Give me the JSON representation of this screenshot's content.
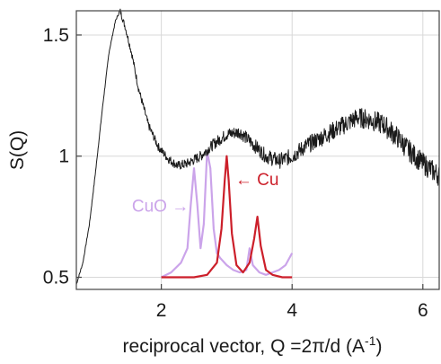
{
  "chart_data": {
    "type": "line",
    "title": "",
    "xlabel": "reciprocal vector, Q =2π/d (A",
    "xlabel_sup": "-1",
    "xlabel_suffix": ")",
    "ylabel": "S(Q)",
    "xlim": [
      0.7,
      6.25
    ],
    "ylim": [
      0.45,
      1.6
    ],
    "xticks": [
      2,
      4,
      6
    ],
    "xtick_labels": [
      "2",
      "4",
      "6"
    ],
    "yticks": [
      0.5,
      1,
      1.5
    ],
    "ytick_labels": [
      "0.5",
      "1",
      "1.5"
    ],
    "grid": true,
    "legend": "none",
    "series": [
      {
        "color": "#1a1a1a",
        "noisy": true,
        "x": [
          0.7,
          0.8,
          0.9,
          1.0,
          1.1,
          1.2,
          1.3,
          1.37,
          1.45,
          1.55,
          1.65,
          1.8,
          1.95,
          2.1,
          2.25,
          2.4,
          2.6,
          2.8,
          3.0,
          3.2,
          3.4,
          3.6,
          3.8,
          4.0,
          4.2,
          4.4,
          4.6,
          4.8,
          5.0,
          5.2,
          5.4,
          5.6,
          5.8,
          6.0,
          6.2,
          6.25
        ],
        "y": [
          0.47,
          0.56,
          0.72,
          0.95,
          1.2,
          1.43,
          1.56,
          1.6,
          1.53,
          1.42,
          1.28,
          1.13,
          1.04,
          0.99,
          0.96,
          0.97,
          1.0,
          1.05,
          1.09,
          1.1,
          1.05,
          1.0,
          0.98,
          1.0,
          1.04,
          1.07,
          1.1,
          1.13,
          1.16,
          1.15,
          1.13,
          1.08,
          1.02,
          0.97,
          0.93,
          0.92
        ]
      },
      {
        "name": "CuO",
        "color": "#cba4ea",
        "x": [
          2.0,
          2.15,
          2.3,
          2.4,
          2.45,
          2.5,
          2.55,
          2.6,
          2.65,
          2.7,
          2.75,
          2.8,
          2.85,
          2.9,
          3.0,
          3.1,
          3.2,
          3.3,
          3.35,
          3.4,
          3.5,
          3.6,
          3.7,
          3.8,
          3.9,
          4.0
        ],
        "y": [
          0.5,
          0.52,
          0.56,
          0.62,
          0.8,
          0.95,
          0.8,
          0.62,
          0.72,
          1.02,
          0.95,
          0.7,
          0.6,
          0.58,
          0.55,
          0.53,
          0.52,
          0.53,
          0.62,
          0.55,
          0.52,
          0.51,
          0.52,
          0.53,
          0.55,
          0.6
        ]
      },
      {
        "name": "Cu",
        "color": "#cc1f2a",
        "x": [
          2.0,
          2.5,
          2.7,
          2.85,
          2.92,
          2.97,
          3.0,
          3.03,
          3.08,
          3.15,
          3.25,
          3.35,
          3.42,
          3.47,
          3.52,
          3.6,
          3.7,
          3.85,
          4.0
        ],
        "y": [
          0.5,
          0.5,
          0.51,
          0.56,
          0.7,
          0.9,
          1.0,
          0.9,
          0.68,
          0.55,
          0.52,
          0.56,
          0.66,
          0.75,
          0.63,
          0.53,
          0.51,
          0.5,
          0.5
        ]
      }
    ],
    "annotations": [
      {
        "text": "CuO →",
        "x": 2.42,
        "y": 0.77,
        "color": "#cba4ea",
        "align": "end"
      },
      {
        "text": "← Cu",
        "x": 3.13,
        "y": 0.88,
        "color": "#cc1f2a",
        "align": "start"
      }
    ]
  }
}
